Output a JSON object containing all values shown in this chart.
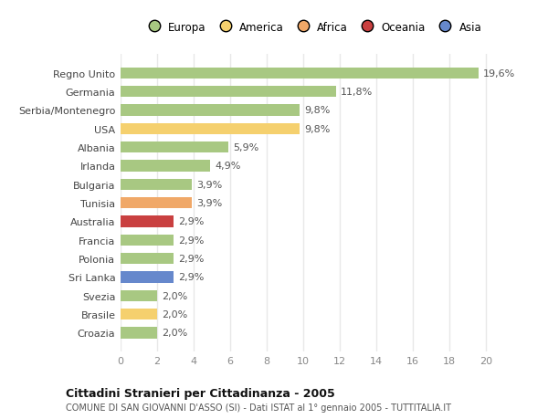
{
  "countries": [
    "Regno Unito",
    "Germania",
    "Serbia/Montenegro",
    "USA",
    "Albania",
    "Irlanda",
    "Bulgaria",
    "Tunisia",
    "Australia",
    "Francia",
    "Polonia",
    "Sri Lanka",
    "Svezia",
    "Brasile",
    "Croazia"
  ],
  "values": [
    19.6,
    11.8,
    9.8,
    9.8,
    5.9,
    4.9,
    3.9,
    3.9,
    2.9,
    2.9,
    2.9,
    2.9,
    2.0,
    2.0,
    2.0
  ],
  "labels": [
    "19,6%",
    "11,8%",
    "9,8%",
    "9,8%",
    "5,9%",
    "4,9%",
    "3,9%",
    "3,9%",
    "2,9%",
    "2,9%",
    "2,9%",
    "2,9%",
    "2,0%",
    "2,0%",
    "2,0%"
  ],
  "bar_colors": [
    "#a8c882",
    "#a8c882",
    "#a8c882",
    "#f5d06e",
    "#a8c882",
    "#a8c882",
    "#a8c882",
    "#f0a868",
    "#c94040",
    "#a8c882",
    "#a8c882",
    "#6688cc",
    "#a8c882",
    "#f5d06e",
    "#a8c882"
  ],
  "continent_colors": {
    "Europa": "#a8c882",
    "America": "#f5d06e",
    "Africa": "#f0a868",
    "Oceania": "#c94040",
    "Asia": "#6688cc"
  },
  "xlim": [
    0,
    21
  ],
  "xticks": [
    0,
    2,
    4,
    6,
    8,
    10,
    12,
    14,
    16,
    18,
    20
  ],
  "title": "Cittadini Stranieri per Cittadinanza - 2005",
  "subtitle": "COMUNE DI SAN GIOVANNI D'ASSO (SI) - Dati ISTAT al 1° gennaio 2005 - TUTTITALIA.IT",
  "background_color": "#ffffff",
  "plot_bg_color": "#ffffff",
  "bar_height": 0.6,
  "grid_color": "#e8e8e8",
  "label_fontsize": 8,
  "tick_fontsize": 8,
  "ytick_fontsize": 8
}
